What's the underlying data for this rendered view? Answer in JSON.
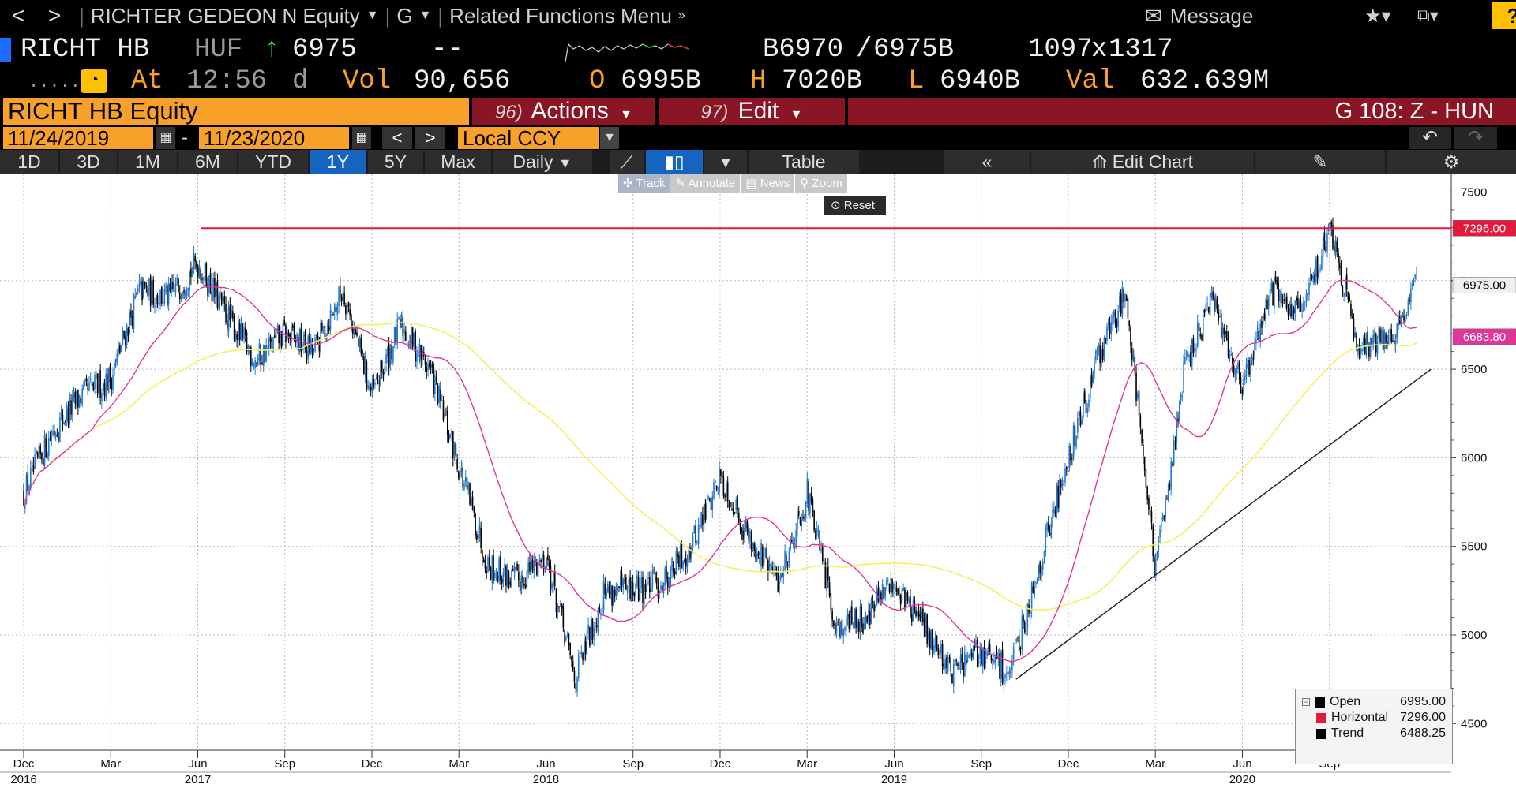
{
  "titlebar": {
    "back": "<",
    "forward": ">",
    "security": "RICHTER GEDEON N Equity",
    "function": "G",
    "related": "Related Functions Menu",
    "message": "Message",
    "help": "?"
  },
  "quote": {
    "ticker": "RICHT HB",
    "currency": "HUF",
    "last": "6975",
    "change": "--",
    "bid": "B6970",
    "ask": "6975B",
    "bid_ask_sep": "/",
    "size": "1097",
    "size_x": "x",
    "size2": "1317",
    "dots": ".....",
    "at_label": "At",
    "time": "12:56",
    "time_suffix": "d",
    "vol_label": "Vol",
    "volume": "90,656",
    "open_label": "O",
    "open": "6995B",
    "high_label": "H",
    "high": "7020B",
    "low_label": "L",
    "low": "6940B",
    "val_label": "Val",
    "value": "632.639M"
  },
  "secbar": {
    "security": "RICHT HB Equity",
    "actions_num": "96)",
    "actions": "Actions",
    "edit_num": "97)",
    "edit": "Edit",
    "page": "G 108: Z - HUN"
  },
  "dates": {
    "start": "11/24/2019",
    "dash": "-",
    "end": "11/23/2020",
    "ccy": "Local CCY"
  },
  "periods": [
    "1D",
    "3D",
    "1M",
    "6M",
    "YTD",
    "1Y",
    "5Y",
    "Max"
  ],
  "active_period": "1Y",
  "toolbar": {
    "frequency": "Daily",
    "table": "Table",
    "edit_chart": "Edit Chart"
  },
  "chart_tools": [
    "Track",
    "Annotate",
    "News",
    "Zoom"
  ],
  "reset_label": "Reset",
  "legend": {
    "items": [
      {
        "name": "Open",
        "value": "6995.00",
        "color": "#000000"
      },
      {
        "name": "Horizontal",
        "value": "7296.00",
        "color": "#e8183c"
      },
      {
        "name": "Trend",
        "value": "6488.25",
        "color": "#000000"
      }
    ]
  },
  "chart_data": {
    "type": "candlestick",
    "ylim": [
      4350,
      7600
    ],
    "y_ticks": [
      4500,
      5000,
      5500,
      6000,
      6500,
      7000,
      7500
    ],
    "x_months": [
      {
        "label": "Dec",
        "i": 0
      },
      {
        "label": "Mar",
        "i": 3
      },
      {
        "label": "Jun",
        "i": 6
      },
      {
        "label": "Sep",
        "i": 9
      },
      {
        "label": "Dec",
        "i": 12
      },
      {
        "label": "Mar",
        "i": 15
      },
      {
        "label": "Jun",
        "i": 18
      },
      {
        "label": "Sep",
        "i": 21
      },
      {
        "label": "Dec",
        "i": 24
      },
      {
        "label": "Mar",
        "i": 27
      },
      {
        "label": "Jun",
        "i": 30
      },
      {
        "label": "Sep",
        "i": 33
      },
      {
        "label": "Dec",
        "i": 36
      },
      {
        "label": "Mar",
        "i": 39
      },
      {
        "label": "Jun",
        "i": 42
      },
      {
        "label": "Sep",
        "i": 45
      }
    ],
    "x_years": [
      {
        "label": "2016",
        "i": 0
      },
      {
        "label": "2017",
        "i": 6
      },
      {
        "label": "2018",
        "i": 18
      },
      {
        "label": "2019",
        "i": 30
      },
      {
        "label": "2020",
        "i": 42
      }
    ],
    "price_path": [
      {
        "i": 0,
        "v": 5800
      },
      {
        "i": 1,
        "v": 6150
      },
      {
        "i": 2,
        "v": 6350
      },
      {
        "i": 3,
        "v": 6450
      },
      {
        "i": 4,
        "v": 6950
      },
      {
        "i": 5,
        "v": 6900
      },
      {
        "i": 6,
        "v": 7100
      },
      {
        "i": 7,
        "v": 6800
      },
      {
        "i": 8,
        "v": 6550
      },
      {
        "i": 9,
        "v": 6700
      },
      {
        "i": 10,
        "v": 6600
      },
      {
        "i": 11,
        "v": 6950
      },
      {
        "i": 12,
        "v": 6350
      },
      {
        "i": 13,
        "v": 6750
      },
      {
        "i": 14,
        "v": 6500
      },
      {
        "i": 15,
        "v": 5950
      },
      {
        "i": 16,
        "v": 5400
      },
      {
        "i": 17,
        "v": 5300
      },
      {
        "i": 18,
        "v": 5450
      },
      {
        "i": 19,
        "v": 4750
      },
      {
        "i": 20,
        "v": 5250
      },
      {
        "i": 21,
        "v": 5250
      },
      {
        "i": 22,
        "v": 5300
      },
      {
        "i": 23,
        "v": 5500
      },
      {
        "i": 24,
        "v": 5900
      },
      {
        "i": 25,
        "v": 5550
      },
      {
        "i": 26,
        "v": 5300
      },
      {
        "i": 27,
        "v": 5800
      },
      {
        "i": 28,
        "v": 5050
      },
      {
        "i": 29,
        "v": 5100
      },
      {
        "i": 30,
        "v": 5300
      },
      {
        "i": 31,
        "v": 5050
      },
      {
        "i": 32,
        "v": 4800
      },
      {
        "i": 33,
        "v": 4900
      },
      {
        "i": 34,
        "v": 4780
      },
      {
        "i": 35,
        "v": 5400
      },
      {
        "i": 36,
        "v": 6000
      },
      {
        "i": 37,
        "v": 6550
      },
      {
        "i": 38,
        "v": 6950
      },
      {
        "i": 39,
        "v": 5350
      },
      {
        "i": 40,
        "v": 6500
      },
      {
        "i": 41,
        "v": 6900
      },
      {
        "i": 42,
        "v": 6400
      },
      {
        "i": 43,
        "v": 6950
      },
      {
        "i": 44,
        "v": 6800
      },
      {
        "i": 45,
        "v": 7300
      },
      {
        "i": 46,
        "v": 6650
      },
      {
        "i": 47,
        "v": 6650
      },
      {
        "i": 48,
        "v": 6975
      }
    ],
    "ma_short_color": "#e0359a",
    "ma_long_color": "#f5f060",
    "horizontal": {
      "value": 7296.0,
      "label": "7296.00",
      "color": "#e8183c"
    },
    "trend": {
      "from_i": 34.2,
      "from_v": 4750,
      "to_i": 48.5,
      "to_v": 6500,
      "color": "#222222"
    },
    "last_price": {
      "value": 6975.0,
      "label": "6975.00"
    },
    "ma_tag": {
      "value": 6683.8,
      "label": "6683.80",
      "color": "#e0359a"
    },
    "up_color": "#1e78d6",
    "down_color": "#000000"
  }
}
